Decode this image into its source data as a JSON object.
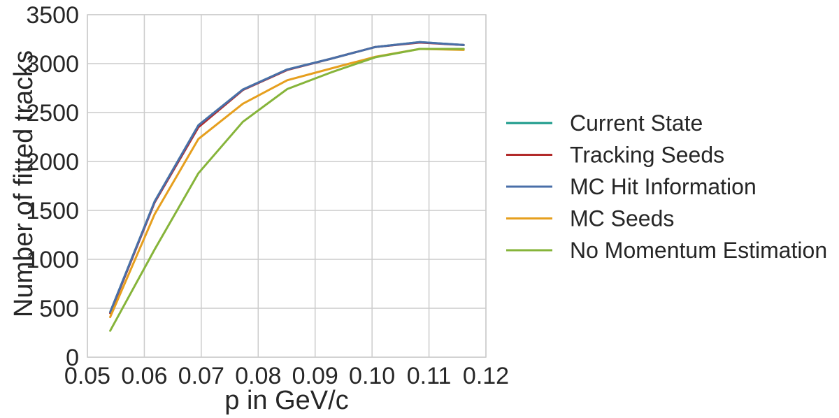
{
  "chart_data": {
    "type": "line",
    "title": "",
    "xlabel": "p in GeV/c",
    "ylabel": "Number of fitted tracks",
    "xlim": [
      0.05,
      0.12
    ],
    "ylim": [
      0,
      3500
    ],
    "xticks": [
      0.05,
      0.06,
      0.07,
      0.08,
      0.09,
      0.1,
      0.11,
      0.12
    ],
    "xtick_labels": [
      "0.05",
      "0.06",
      "0.07",
      "0.08",
      "0.09",
      "0.10",
      "0.11",
      "0.12"
    ],
    "yticks": [
      0,
      500,
      1000,
      1500,
      2000,
      2500,
      3000,
      3500
    ],
    "ytick_labels": [
      "0",
      "500",
      "1000",
      "1500",
      "2000",
      "2500",
      "3000",
      "3500"
    ],
    "grid": true,
    "legend_position": "right, outside plot",
    "x": [
      0.054,
      0.0618,
      0.0695,
      0.0773,
      0.0851,
      0.0928,
      0.1006,
      0.1084,
      0.1161
    ],
    "series": [
      {
        "name": "Current State",
        "color": "#1a9a8a",
        "values": [
          460,
          1590,
          2370,
          2735,
          2940,
          3050,
          3170,
          3220,
          3190
        ]
      },
      {
        "name": "Tracking Seeds",
        "color": "#b22a2a",
        "values": [
          450,
          1580,
          2350,
          2730,
          2935,
          3050,
          3170,
          3215,
          3190
        ]
      },
      {
        "name": "MC Hit Information",
        "color": "#4a6fa8",
        "values": [
          460,
          1590,
          2370,
          2735,
          2940,
          3050,
          3170,
          3220,
          3190
        ]
      },
      {
        "name": "MC Seeds",
        "color": "#e69f1e",
        "values": [
          410,
          1460,
          2230,
          2590,
          2830,
          2950,
          3070,
          3150,
          3140
        ]
      },
      {
        "name": "No Momentum Estimation",
        "color": "#86b43a",
        "values": [
          270,
          1100,
          1880,
          2405,
          2740,
          2910,
          3065,
          3150,
          3150
        ]
      }
    ]
  }
}
